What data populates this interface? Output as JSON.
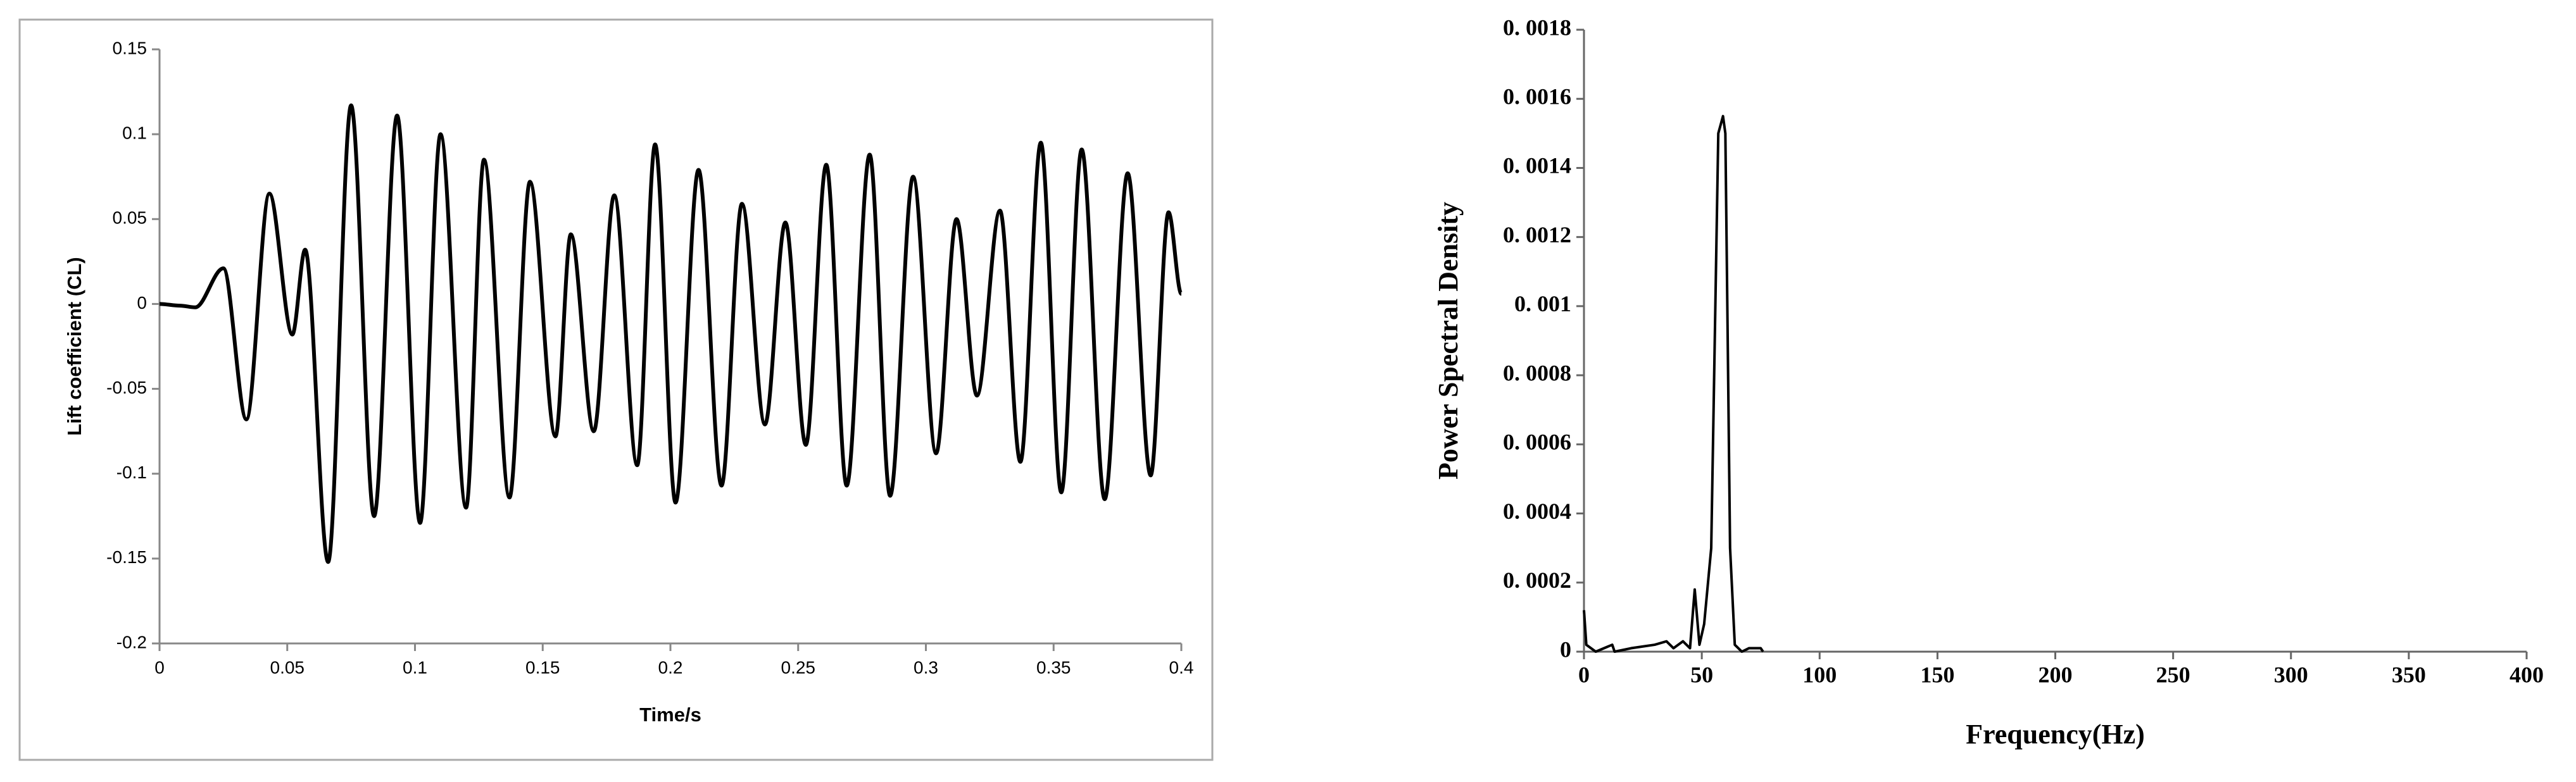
{
  "chart_data": [
    {
      "type": "line",
      "x_label": "Time/s",
      "y_label": "Lift coefficient (CL)",
      "color": "#000000",
      "frame": true,
      "x": [
        0,
        0.008,
        0.014,
        0.025,
        0.034,
        0.043,
        0.052,
        0.057,
        0.066,
        0.075,
        0.084,
        0.093,
        0.102,
        0.11,
        0.12,
        0.127,
        0.137,
        0.145,
        0.155,
        0.161,
        0.17,
        0.178,
        0.187,
        0.194,
        0.202,
        0.211,
        0.22,
        0.228,
        0.237,
        0.245,
        0.253,
        0.261,
        0.269,
        0.278,
        0.286,
        0.295,
        0.304,
        0.312,
        0.32,
        0.329,
        0.337,
        0.345,
        0.353,
        0.361,
        0.37,
        0.379,
        0.388,
        0.395,
        0.4
      ],
      "values": [
        0,
        -0.001,
        -0.002,
        0.021,
        -0.068,
        0.065,
        -0.018,
        0.032,
        -0.152,
        0.117,
        -0.125,
        0.111,
        -0.129,
        0.1,
        -0.12,
        0.085,
        -0.114,
        0.072,
        -0.078,
        0.041,
        -0.075,
        0.064,
        -0.095,
        0.094,
        -0.117,
        0.079,
        -0.107,
        0.059,
        -0.071,
        0.048,
        -0.083,
        0.082,
        -0.107,
        0.088,
        -0.113,
        0.075,
        -0.088,
        0.05,
        -0.054,
        0.055,
        -0.093,
        0.095,
        -0.111,
        0.091,
        -0.115,
        0.077,
        -0.101,
        0.054,
        0.006
      ],
      "xlim": [
        0,
        0.4
      ],
      "xticks": [
        0,
        0.05,
        0.1,
        0.15,
        0.2,
        0.25,
        0.3,
        0.35,
        0.4
      ],
      "ylim": [
        -0.2,
        0.15
      ],
      "yticks": [
        0.15,
        0.1,
        0.05,
        0,
        -0.05,
        -0.1,
        -0.15,
        -0.2
      ]
    },
    {
      "type": "line",
      "x_label": "Frequency(Hz)",
      "y_label": "Power Spectral Density",
      "color": "#000000",
      "frame": false,
      "x": [
        0,
        1,
        5,
        12,
        13,
        20,
        30,
        35,
        38,
        42,
        45,
        47,
        49,
        51,
        54,
        57,
        59,
        60,
        62,
        64,
        67,
        70,
        75,
        76
      ],
      "values": [
        0.00012,
        2e-05,
        0,
        2e-05,
        0,
        1e-05,
        2e-05,
        3e-05,
        1e-05,
        3e-05,
        1e-05,
        0.00018,
        2e-05,
        8e-05,
        0.0003,
        0.0015,
        0.00155,
        0.0015,
        0.0003,
        2e-05,
        0,
        1e-05,
        1e-05,
        0
      ],
      "xlim": [
        0,
        400
      ],
      "xticks": [
        0,
        50,
        100,
        150,
        200,
        250,
        300,
        350,
        400
      ],
      "ylim": [
        0,
        0.0018
      ],
      "yticks": [
        0,
        {
          "value": 0.0002,
          "label": "0. 0002"
        },
        {
          "value": 0.0004,
          "label": "0. 0004"
        },
        {
          "value": 0.0006,
          "label": "0. 0006"
        },
        {
          "value": 0.0008,
          "label": "0. 0008"
        },
        {
          "value": 0.001,
          "label": "0. 001"
        },
        {
          "value": 0.0012,
          "label": "0. 0012"
        },
        {
          "value": 0.0014,
          "label": "0. 0014"
        },
        {
          "value": 0.0016,
          "label": "0. 0016"
        },
        {
          "value": 0.0018,
          "label": "0. 0018"
        }
      ]
    }
  ]
}
